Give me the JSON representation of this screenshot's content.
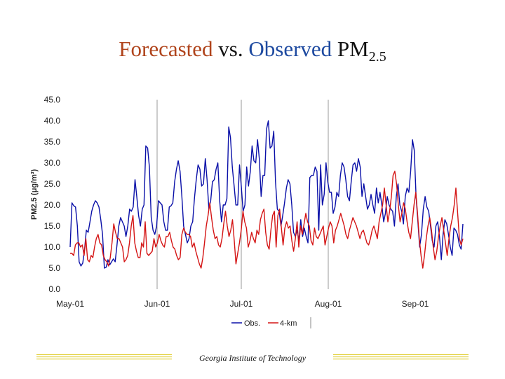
{
  "title": {
    "part1": "Forecasted",
    "part2": "vs.",
    "part3": "Observed",
    "part4": "PM",
    "sub": "2.5"
  },
  "footer": "Georgia Institute of Technology",
  "colors": {
    "obs": "#0a10a8",
    "model": "#d41414",
    "title_forecast": "#b0441c",
    "title_observed": "#1e4aa0"
  },
  "chart_data": {
    "type": "line",
    "ylabel": "PM2.5 (μg/m³)",
    "ylim": [
      0,
      45
    ],
    "ytick_values": [
      0,
      5,
      10,
      15,
      20,
      25,
      30,
      35,
      40,
      45
    ],
    "yticks": [
      "0.0",
      "5.0",
      "10.0",
      "15.0",
      "20.0",
      "25.0",
      "30.0",
      "35.0",
      "40.0",
      "45.0"
    ],
    "xlim": [
      0,
      140
    ],
    "xtick_values": [
      0,
      31,
      61,
      92,
      123
    ],
    "xticks": [
      "May-01",
      "Jun-01",
      "Jul-01",
      "Aug-01",
      "Sep-01"
    ],
    "vlines": [
      31,
      61,
      92
    ],
    "grid": false,
    "legend_position": "bottom",
    "series": [
      {
        "name": "Obs.",
        "color": "#0a10a8",
        "values": [
          10.0,
          20.5,
          19.8,
          19.5,
          15.0,
          6.5,
          5.5,
          6.2,
          9.5,
          14.0,
          13.5,
          16.0,
          18.5,
          20.0,
          21.0,
          20.5,
          19.5,
          16.5,
          13.0,
          5.0,
          5.2,
          7.0,
          5.8,
          6.5,
          7.2,
          6.5,
          10.5,
          15.0,
          17.0,
          16.0,
          15.0,
          12.5,
          15.0,
          19.0,
          18.5,
          19.5,
          26.0,
          22.0,
          17.5,
          15.0,
          19.0,
          20.0,
          34.0,
          33.5,
          29.0,
          17.0,
          14.0,
          13.0,
          15.0,
          21.0,
          20.5,
          20.0,
          16.0,
          14.0,
          14.0,
          19.5,
          19.8,
          20.5,
          25.5,
          28.5,
          30.5,
          28.0,
          22.0,
          15.0,
          13.0,
          11.0,
          12.0,
          15.0,
          16.0,
          21.5,
          26.0,
          29.5,
          28.5,
          24.5,
          25.0,
          31.0,
          26.0,
          19.0,
          21.0,
          25.5,
          26.0,
          28.5,
          30.0,
          21.0,
          16.0,
          20.0,
          20.0,
          21.5,
          38.5,
          36.0,
          29.0,
          24.5,
          20.0,
          20.0,
          29.5,
          24.5,
          18.5,
          20.0,
          29.0,
          24.5,
          28.0,
          34.0,
          30.5,
          30.0,
          35.5,
          31.0,
          22.0,
          27.0,
          27.0,
          38.0,
          40.0,
          33.5,
          34.0,
          37.5,
          25.5,
          19.0,
          18.5,
          15.0,
          17.5,
          20.5,
          24.0,
          26.0,
          25.0,
          20.0,
          13.5,
          12.5,
          14.0,
          11.5,
          16.5,
          12.5,
          14.5,
          12.5,
          11.0,
          26.5,
          27.0,
          27.0,
          29.0,
          28.0,
          14.0,
          29.5,
          20.0,
          22.5,
          30.0,
          25.5,
          23.0,
          23.0,
          18.0,
          19.5,
          23.0,
          22.0,
          27.0,
          30.0,
          29.0,
          26.0,
          22.0,
          21.0,
          25.5,
          29.5,
          30.0,
          28.0,
          31.0,
          29.0,
          22.0,
          25.0,
          22.0,
          19.0,
          20.0,
          22.5,
          20.0,
          18.0,
          24.0,
          20.5,
          23.0,
          20.0,
          16.0,
          18.0,
          22.0,
          20.0,
          19.0,
          18.5,
          15.0,
          22.0,
          25.0,
          20.0,
          18.5,
          15.5,
          22.0,
          24.0,
          23.0,
          28.0,
          35.5,
          33.0,
          22.0,
          16.0,
          10.0,
          13.0,
          19.0,
          22.0,
          19.5,
          18.5,
          15.0,
          11.5,
          10.0,
          15.0,
          16.0,
          12.5,
          7.0,
          13.0,
          16.5,
          15.5,
          13.0,
          10.0,
          8.0,
          14.5,
          14.0,
          13.0,
          10.5,
          9.5,
          15.5
        ]
      },
      {
        "name": "4-km",
        "color": "#d41414",
        "values": [
          8.5,
          8.5,
          8.0,
          10.5,
          11.0,
          11.0,
          10.0,
          10.5,
          8.0,
          12.0,
          7.0,
          6.5,
          8.0,
          7.5,
          10.0,
          12.0,
          13.0,
          11.0,
          10.5,
          8.0,
          7.0,
          6.5,
          5.5,
          7.5,
          11.0,
          15.5,
          13.5,
          12.0,
          12.0,
          11.0,
          10.0,
          6.5,
          7.0,
          8.0,
          11.0,
          15.0,
          17.5,
          11.0,
          9.0,
          7.5,
          7.5,
          11.0,
          10.0,
          16.0,
          8.5,
          8.0,
          8.5,
          9.0,
          12.0,
          10.0,
          11.0,
          13.0,
          11.5,
          10.5,
          10.0,
          12.5,
          12.5,
          13.5,
          11.5,
          10.0,
          9.5,
          8.0,
          7.0,
          7.5,
          13.0,
          14.5,
          13.5,
          13.0,
          13.0,
          12.5,
          10.0,
          11.0,
          9.0,
          7.5,
          6.0,
          5.0,
          7.5,
          11.0,
          15.0,
          17.5,
          20.5,
          17.0,
          14.0,
          12.0,
          12.5,
          10.5,
          10.0,
          12.0,
          15.5,
          18.5,
          15.0,
          12.5,
          14.0,
          16.5,
          11.5,
          6.0,
          8.5,
          11.0,
          14.0,
          18.5,
          16.0,
          14.5,
          10.0,
          11.5,
          13.5,
          12.0,
          11.0,
          14.0,
          13.0,
          16.5,
          18.0,
          19.0,
          13.5,
          10.5,
          9.5,
          14.0,
          17.5,
          18.5,
          10.0,
          17.5,
          19.0,
          14.5,
          10.5,
          14.5,
          16.0,
          14.5,
          15.0,
          11.5,
          9.0,
          12.0,
          16.0,
          10.0,
          15.0,
          13.0,
          15.5,
          18.0,
          16.0,
          15.0,
          11.5,
          10.5,
          14.5,
          12.5,
          12.0,
          13.0,
          14.0,
          15.0,
          10.5,
          12.5,
          14.5,
          16.0,
          15.0,
          11.0,
          14.0,
          15.0,
          16.5,
          18.0,
          16.5,
          15.0,
          13.0,
          12.0,
          14.0,
          15.5,
          17.0,
          16.0,
          15.0,
          13.5,
          12.0,
          13.5,
          14.0,
          12.5,
          11.0,
          10.5,
          12.0,
          14.0,
          15.0,
          13.5,
          12.0,
          16.0,
          18.0,
          20.0,
          24.0,
          20.0,
          16.0,
          18.5,
          22.0,
          27.0,
          28.0,
          25.0,
          20.0,
          16.0,
          18.0,
          20.5,
          19.0,
          16.0,
          13.5,
          12.0,
          16.0,
          20.0,
          23.0,
          18.0,
          12.0,
          8.0,
          5.0,
          8.0,
          12.0,
          15.0,
          17.0,
          14.0,
          10.0,
          7.0,
          9.0,
          12.5,
          15.0,
          17.0,
          14.0,
          11.0,
          8.0,
          12.0,
          15.0,
          17.0,
          20.0,
          24.0,
          18.0,
          12.0,
          10.5,
          12.0
        ]
      }
    ]
  }
}
